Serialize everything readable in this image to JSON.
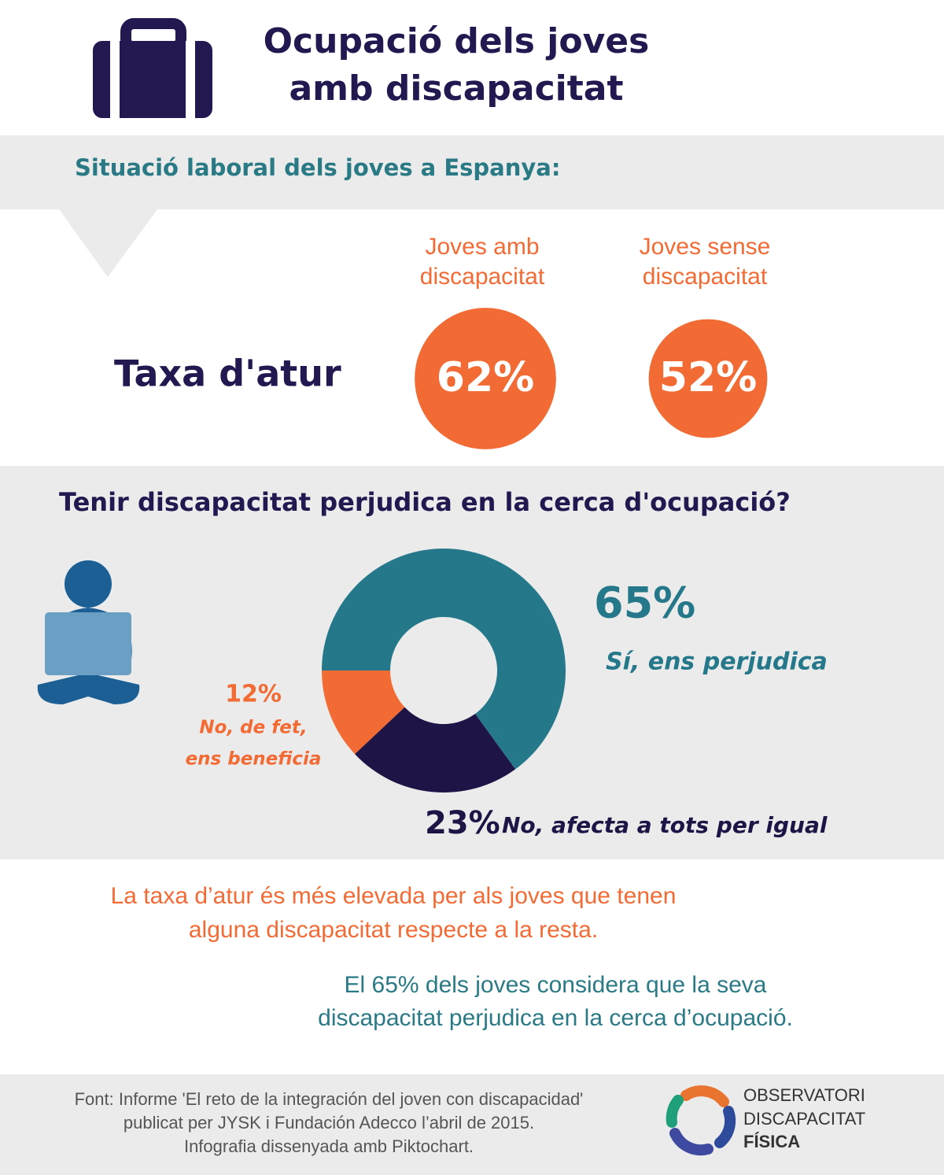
{
  "header": {
    "title": [
      "Ocupació dels joves",
      "amb discapacitat"
    ]
  },
  "section1": {
    "heading": "Situació laboral dels joves a Espanya:"
  },
  "chart_data": [
    {
      "type": "bubble",
      "row_label": "Taxa d'atur",
      "categories": [
        [
          "Joves amb",
          "discapacitat"
        ],
        [
          "Joves sense",
          "discapacitat"
        ]
      ],
      "values": [
        62,
        52
      ],
      "value_labels": [
        "62%",
        "52%"
      ],
      "color": "#f26b35"
    },
    {
      "type": "pie",
      "donut": true,
      "title": "Tenir discapacitat perjudica en la cerca d'ocupació?",
      "categories": [
        [
          "Sí, ens perjudica"
        ],
        [
          "No, afecta a tots per igual"
        ],
        [
          "No, de fet,",
          "ens beneficia"
        ]
      ],
      "values": [
        65,
        23,
        12
      ],
      "value_labels": [
        "65%",
        "23%",
        "12%"
      ],
      "colors": [
        "#24788a",
        "#1f1446",
        "#f26b35"
      ]
    }
  ],
  "notes": [
    [
      "La taxa d’atur és més elevada per als joves que tenen",
      "alguna discapacitat respecte a la resta."
    ],
    [
      "El 65% dels joves considera que la seva",
      "discapacitat perjudica en la cerca d’ocupació."
    ]
  ],
  "footer": {
    "source": [
      "Font: Informe 'El reto de la integración del joven con discapacidad'",
      "publicat per JYSK i Fundación Adecco l’abril de 2015.",
      "Infografia dissenyada amb Piktochart."
    ],
    "logo": [
      "OBSERVATORI",
      "DISCAPACITAT",
      "FÍSICA"
    ]
  }
}
